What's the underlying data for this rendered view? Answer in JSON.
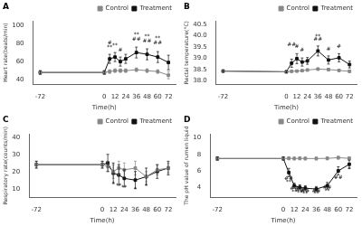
{
  "chart_data": [
    {
      "type": "line",
      "title": "A",
      "xlabel": "Time(h)",
      "ylabel": "Heart rate(beats/min)",
      "x": [
        -72,
        0,
        6,
        12,
        18,
        24,
        36,
        48,
        60,
        72
      ],
      "series": [
        {
          "name": "Control",
          "color": "#888888",
          "marker": "square",
          "values": [
            48,
            48,
            49,
            50,
            50,
            50,
            51,
            50,
            49,
            45
          ],
          "errors": [
            2,
            2,
            2,
            2,
            2,
            2,
            2,
            2,
            2,
            4
          ]
        },
        {
          "name": "Treatment",
          "color": "#111111",
          "marker": "square",
          "values": [
            48,
            48,
            63,
            65,
            60,
            63,
            70,
            68,
            65,
            59
          ],
          "errors": [
            2,
            2,
            5,
            5,
            5,
            5,
            6,
            6,
            6,
            8
          ]
        }
      ],
      "annotations": [
        {
          "x": 6,
          "y": 73,
          "text": "**"
        },
        {
          "x": 6,
          "y": 78,
          "text": "#"
        },
        {
          "x": 12,
          "y": 75,
          "text": "**"
        },
        {
          "x": 18,
          "y": 70,
          "text": "#"
        },
        {
          "x": 36,
          "y": 82,
          "text": "##"
        },
        {
          "x": 36,
          "y": 87,
          "text": "**"
        },
        {
          "x": 48,
          "y": 80,
          "text": "##"
        },
        {
          "x": 48,
          "y": 85,
          "text": "**"
        },
        {
          "x": 60,
          "y": 78,
          "text": "##"
        },
        {
          "x": 60,
          "y": 83,
          "text": "**"
        }
      ],
      "xlim": [
        -80,
        80
      ],
      "xticks": [
        -72,
        0,
        12,
        24,
        36,
        48,
        60,
        72
      ],
      "ylim": [
        35,
        105
      ],
      "yticks": [
        40,
        60,
        80,
        100
      ],
      "grid": false,
      "legend": "upper right"
    },
    {
      "type": "line",
      "title": "B",
      "xlabel": "Time(h)",
      "ylabel": "Rectal temperature(°C)",
      "x": [
        -72,
        0,
        6,
        12,
        18,
        24,
        36,
        48,
        60,
        72
      ],
      "series": [
        {
          "name": "Control",
          "color": "#888888",
          "marker": "square",
          "values": [
            38.43,
            38.4,
            38.42,
            38.43,
            38.45,
            38.48,
            38.52,
            38.5,
            38.46,
            38.42
          ],
          "errors": [
            0.04,
            0.04,
            0.04,
            0.04,
            0.04,
            0.05,
            0.05,
            0.05,
            0.04,
            0.04
          ]
        },
        {
          "name": "Treatment",
          "color": "#111111",
          "marker": "square",
          "values": [
            38.43,
            38.4,
            38.78,
            38.98,
            38.83,
            38.88,
            39.32,
            38.92,
            39.02,
            38.72
          ],
          "errors": [
            0.04,
            0.04,
            0.18,
            0.22,
            0.18,
            0.15,
            0.22,
            0.18,
            0.18,
            0.15
          ]
        }
      ],
      "annotations": [
        {
          "x": 6,
          "y": 39.48,
          "text": "##"
        },
        {
          "x": 12,
          "y": 39.38,
          "text": "#"
        },
        {
          "x": 18,
          "y": 39.22,
          "text": "#"
        },
        {
          "x": 36,
          "y": 39.72,
          "text": "##"
        },
        {
          "x": 36,
          "y": 39.82,
          "text": "**"
        },
        {
          "x": 48,
          "y": 39.28,
          "text": "#"
        },
        {
          "x": 60,
          "y": 39.38,
          "text": "#"
        }
      ],
      "xlim": [
        -80,
        80
      ],
      "xticks": [
        -72,
        0,
        12,
        24,
        36,
        48,
        60,
        72
      ],
      "ylim": [
        37.85,
        40.65
      ],
      "yticks": [
        {
          "value": 38,
          "label": "38.0"
        },
        38.5,
        {
          "value": 39,
          "label": "39.0"
        },
        39.5,
        {
          "value": 40,
          "label": "40.0"
        },
        40.5
      ],
      "grid": false,
      "legend": "upper right"
    },
    {
      "type": "line",
      "title": "C",
      "xlabel": "Time(h)",
      "ylabel": "Respiratory rate(counts/min)",
      "x": [
        -72,
        0,
        6,
        12,
        18,
        24,
        36,
        48,
        60,
        72
      ],
      "series": [
        {
          "name": "Control",
          "color": "#888888",
          "marker": "square",
          "values": [
            24,
            24,
            23,
            20,
            22,
            21,
            22,
            17,
            21,
            22
          ],
          "errors": [
            2,
            2,
            3,
            4,
            4,
            4,
            4,
            3,
            3,
            3
          ]
        },
        {
          "name": "Treatment",
          "color": "#111111",
          "marker": "square",
          "values": [
            24,
            24,
            25,
            19,
            18,
            16,
            15,
            17,
            20,
            22
          ],
          "errors": [
            2,
            2,
            5,
            6,
            6,
            5,
            5,
            5,
            4,
            4
          ]
        }
      ],
      "annotations": [
        {
          "x": 12,
          "y": 11,
          "text": "*"
        },
        {
          "x": 18,
          "y": 10,
          "text": "**"
        },
        {
          "x": 24,
          "y": 9,
          "text": "**"
        },
        {
          "x": 36,
          "y": 8,
          "text": "*"
        },
        {
          "x": 48,
          "y": 10,
          "text": "*"
        }
      ],
      "xlim": [
        -80,
        80
      ],
      "xticks": [
        -72,
        0,
        12,
        24,
        36,
        48,
        60,
        72
      ],
      "ylim": [
        5,
        42
      ],
      "yticks": [
        10,
        20,
        30,
        40
      ],
      "grid": false,
      "legend": "upper right"
    },
    {
      "type": "line",
      "title": "D",
      "xlabel": "Time(h)",
      "ylabel": "The pH value of rumen liquid",
      "x": [
        -72,
        0,
        6,
        12,
        18,
        24,
        36,
        48,
        60,
        72
      ],
      "series": [
        {
          "name": "Control",
          "color": "#888888",
          "marker": "square",
          "values": [
            7.5,
            7.5,
            7.52,
            7.5,
            7.52,
            7.5,
            7.5,
            7.52,
            7.6,
            7.52
          ],
          "errors": [
            0.18,
            0.18,
            0.18,
            0.18,
            0.18,
            0.18,
            0.18,
            0.18,
            0.18,
            0.18
          ]
        },
        {
          "name": "Treatment",
          "color": "#111111",
          "marker": "square",
          "values": [
            7.5,
            7.5,
            5.8,
            4.2,
            4.0,
            3.9,
            3.8,
            4.2,
            6.0,
            6.8
          ],
          "errors": [
            0.2,
            0.2,
            0.5,
            0.3,
            0.3,
            0.3,
            0.3,
            0.4,
            0.5,
            0.5
          ]
        }
      ],
      "annotations": [
        {
          "x": 6,
          "y": 4.8,
          "text": "##"
        },
        {
          "x": 6,
          "y": 4.3,
          "text": "**"
        },
        {
          "x": 12,
          "y": 3.5,
          "text": "##"
        },
        {
          "x": 12,
          "y": 3.1,
          "text": "**"
        },
        {
          "x": 18,
          "y": 3.35,
          "text": "##"
        },
        {
          "x": 18,
          "y": 2.95,
          "text": "**"
        },
        {
          "x": 24,
          "y": 3.25,
          "text": "##"
        },
        {
          "x": 24,
          "y": 2.85,
          "text": "**"
        },
        {
          "x": 36,
          "y": 3.25,
          "text": "##"
        },
        {
          "x": 36,
          "y": 2.85,
          "text": "**"
        },
        {
          "x": 48,
          "y": 3.65,
          "text": "##"
        },
        {
          "x": 48,
          "y": 3.25,
          "text": "**"
        },
        {
          "x": 60,
          "y": 4.9,
          "text": "##"
        },
        {
          "x": 72,
          "y": 5.9,
          "text": "*"
        }
      ],
      "xlim": [
        -80,
        80
      ],
      "xticks": [
        -72,
        0,
        12,
        24,
        36,
        48,
        60,
        72
      ],
      "ylim": [
        2.8,
        10.5
      ],
      "yticks": [
        4,
        6,
        8,
        10
      ],
      "grid": false,
      "legend": "upper right"
    }
  ]
}
